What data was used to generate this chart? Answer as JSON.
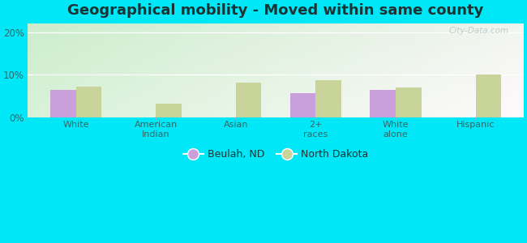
{
  "title": "Geographical mobility - Moved within same county",
  "categories": [
    "White",
    "American\nIndian",
    "Asian",
    "2+\nraces",
    "White\nalone",
    "Hispanic"
  ],
  "beulah_values": [
    6.5,
    0,
    0,
    5.8,
    6.5,
    0
  ],
  "nd_values": [
    7.2,
    3.2,
    8.2,
    8.8,
    7.0,
    10.0
  ],
  "beulah_color": "#c9a0dc",
  "nd_color": "#c8d49a",
  "bar_width": 0.32,
  "ylim": [
    0,
    22
  ],
  "yticks": [
    0,
    10,
    20
  ],
  "ytick_labels": [
    "0%",
    "10%",
    "20%"
  ],
  "bg_outer": "#00e8f8",
  "title_fontsize": 13,
  "tick_color": "#336666",
  "legend_labels": [
    "Beulah, ND",
    "North Dakota"
  ],
  "watermark": "City-Data.com"
}
